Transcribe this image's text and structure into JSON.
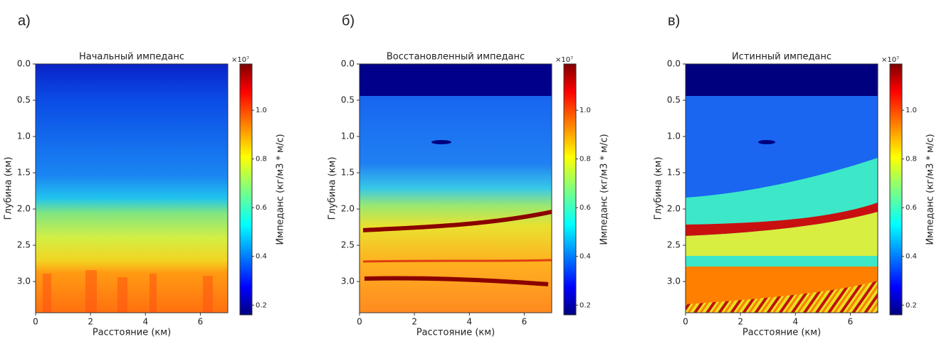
{
  "chart_data": [
    {
      "type": "heatmap",
      "panel_label": "а)",
      "title": "Начальный импеданс",
      "xlabel": "Расстояние (км)",
      "ylabel": "Глубина (км)",
      "colorbar_label": "Импеданс (кг/м3 * м/с)",
      "colorbar_multiplier": "×10⁷",
      "xlim": [
        0,
        7
      ],
      "xticks": [
        0,
        2,
        4,
        6
      ],
      "ylim": [
        0,
        3.43
      ],
      "yticks": [
        {
          "value": 0,
          "label": "0.0"
        },
        0.5,
        {
          "value": 1,
          "label": "1.0"
        },
        1.5,
        {
          "value": 2,
          "label": "2.0"
        },
        2.5,
        {
          "value": 3,
          "label": "3.0"
        }
      ],
      "clim": [
        0.16,
        1.19
      ],
      "cticks": [
        0.2,
        0.4,
        0.6,
        0.8,
        {
          "value": 1,
          "label": "1.0"
        }
      ]
    },
    {
      "type": "heatmap",
      "panel_label": "б)",
      "title": "Восстановленный импеданс",
      "xlabel": "Расстояние (км)",
      "ylabel": "Глубина (км)",
      "colorbar_label": "Импеданс (кг/м3 * м/с)",
      "colorbar_multiplier": "×10⁷",
      "xlim": [
        0,
        7
      ],
      "xticks": [
        0,
        2,
        4,
        6
      ],
      "ylim": [
        0,
        3.43
      ],
      "yticks": [
        {
          "value": 0,
          "label": "0.0"
        },
        0.5,
        {
          "value": 1,
          "label": "1.0"
        },
        1.5,
        {
          "value": 2,
          "label": "2.0"
        },
        2.5,
        {
          "value": 3,
          "label": "3.0"
        }
      ],
      "clim": [
        0.16,
        1.19
      ],
      "cticks": [
        0.2,
        0.4,
        0.6,
        0.8,
        {
          "value": 1,
          "label": "1.0"
        }
      ]
    },
    {
      "type": "heatmap",
      "panel_label": "в)",
      "title": "Истинный импеданс",
      "xlabel": "Расстояние (км)",
      "ylabel": "Глубина (км)",
      "colorbar_label": "Импеданс (кг/м3 * м/с)",
      "colorbar_multiplier": "×10⁷",
      "xlim": [
        0,
        7
      ],
      "xticks": [
        0,
        2,
        4,
        6
      ],
      "ylim": [
        0,
        3.43
      ],
      "yticks": [
        {
          "value": 0,
          "label": "0.0"
        },
        0.5,
        {
          "value": 1,
          "label": "1.0"
        },
        1.5,
        {
          "value": 2,
          "label": "2.0"
        },
        2.5,
        {
          "value": 3,
          "label": "3.0"
        }
      ],
      "clim": [
        0.16,
        1.19
      ],
      "cticks": [
        0.2,
        0.4,
        0.6,
        0.8,
        {
          "value": 1,
          "label": "1.0"
        }
      ]
    }
  ]
}
